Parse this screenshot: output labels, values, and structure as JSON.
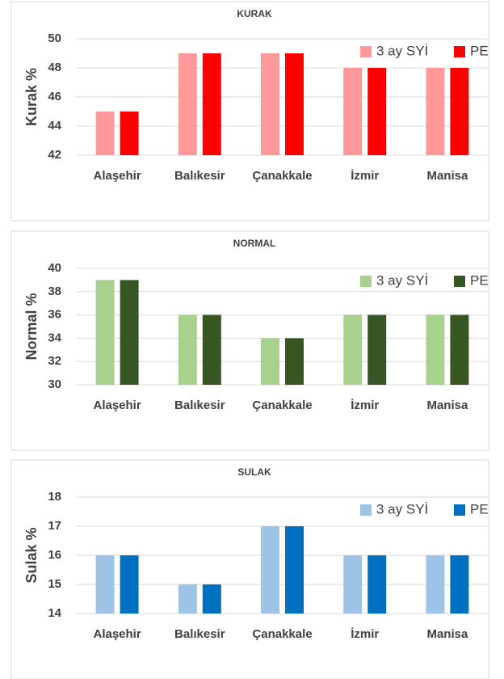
{
  "chart_data": [
    {
      "type": "bar",
      "title": "KURAK",
      "y_label": "Kurak %",
      "categories": [
        "Alaşehir",
        "Balıkesir",
        "Çanakkale",
        "İzmir",
        "Manisa"
      ],
      "series": [
        {
          "name": "3 ay SYİ",
          "color": "#ff9999",
          "values": [
            45,
            49,
            49,
            48,
            48
          ]
        },
        {
          "name": "PE",
          "color": "#ff0000",
          "values": [
            45,
            49,
            49,
            48,
            48
          ]
        }
      ],
      "ylim": [
        42,
        50
      ],
      "yticks": [
        42,
        44,
        46,
        48,
        50
      ],
      "grid": true,
      "legend": "top-right"
    },
    {
      "type": "bar",
      "title": "NORMAL",
      "y_label": "Normal %",
      "categories": [
        "Alaşehir",
        "Balıkesir",
        "Çanakkale",
        "İzmir",
        "Manisa"
      ],
      "series": [
        {
          "name": "3 ay SYİ",
          "color": "#a9d18e",
          "values": [
            39,
            36,
            34,
            36,
            36
          ]
        },
        {
          "name": "PE",
          "color": "#375623",
          "values": [
            39,
            36,
            34,
            36,
            36
          ]
        }
      ],
      "ylim": [
        30,
        40
      ],
      "yticks": [
        30,
        32,
        34,
        36,
        38,
        40
      ],
      "grid": true,
      "legend": "top-right"
    },
    {
      "type": "bar",
      "title": "SULAK",
      "y_label": "Sulak %",
      "categories": [
        "Alaşehir",
        "Balıkesir",
        "Çanakkale",
        "İzmir",
        "Manisa"
      ],
      "series": [
        {
          "name": "3 ay SYİ",
          "color": "#9dc3e6",
          "values": [
            16,
            15,
            17,
            16,
            16
          ]
        },
        {
          "name": "PE",
          "color": "#0070c0",
          "values": [
            16,
            15,
            17,
            16,
            16
          ]
        }
      ],
      "ylim": [
        14,
        18
      ],
      "yticks": [
        14,
        15,
        16,
        17,
        18
      ],
      "grid": true,
      "legend": "top-right"
    }
  ]
}
